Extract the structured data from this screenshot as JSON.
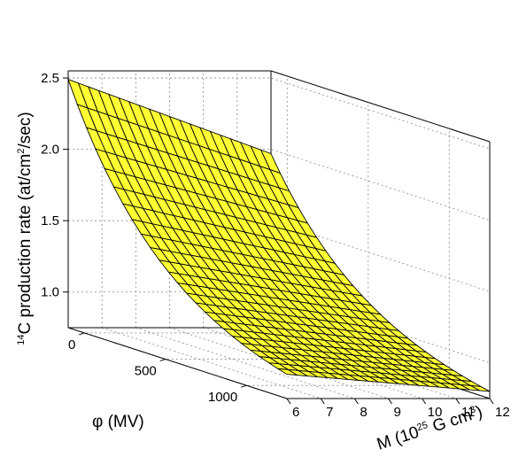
{
  "chart_data": {
    "type": "surface",
    "zlabel": {
      "pre": "",
      "sup1": "14",
      "mid": "C production rate (at/cm",
      "sup2": "2",
      "post": "/sec)"
    },
    "xlabel": {
      "pre": "φ (MV)"
    },
    "ylabel": {
      "pre": "M (10",
      "sup1": "25",
      "mid": " G cm",
      "sup2": "3",
      "post": ")"
    },
    "x_ticks": [
      "0",
      "500",
      "1000"
    ],
    "x_tick_values": [
      0,
      500,
      1000
    ],
    "y_ticks": [
      "6",
      "7",
      "8",
      "9",
      "10",
      "11",
      "12"
    ],
    "y_tick_values": [
      6,
      7,
      8,
      9,
      10,
      11,
      12
    ],
    "z_ticks": [
      "1.0",
      "1.5",
      "2.0",
      "2.5"
    ],
    "z_tick_values": [
      1.0,
      1.5,
      2.0,
      2.5
    ],
    "xlim": [
      -100,
      1250
    ],
    "ylim": [
      6,
      12
    ],
    "zlim": [
      0.75,
      2.55
    ],
    "surface_color": "#ffff33",
    "mesh_color": "#000000",
    "grid": true,
    "corner_values": [
      {
        "phi": -100,
        "M": 6,
        "rate": 2.49
      },
      {
        "phi": -100,
        "M": 12,
        "rate": 1.97
      },
      {
        "phi": 1250,
        "M": 6,
        "rate": 0.92
      },
      {
        "phi": 1250,
        "M": 12,
        "rate": 0.8
      }
    ]
  }
}
